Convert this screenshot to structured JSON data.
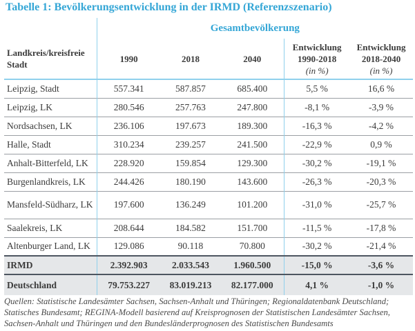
{
  "title": "Tabelle 1: Bevölkerungsentwicklung in der IRMD (Referenzszenario)",
  "colors": {
    "accent": "#34a6d6",
    "summary_bg": "#e5e7e9"
  },
  "table": {
    "group_header": "Gesamtbevölkerung",
    "columns": [
      {
        "label": "Landkreis/kreisfreie Stadt"
      },
      {
        "label": "1990"
      },
      {
        "label": "2018"
      },
      {
        "label": "2040"
      },
      {
        "label": "Entwicklung 1990-2018",
        "unit": "(in %)"
      },
      {
        "label": "Entwicklung 2018-2040",
        "unit": "(in %)"
      }
    ],
    "rows": [
      [
        "Leipzig, Stadt",
        "557.341",
        "587.857",
        "685.400",
        "5,5 %",
        "16,6 %"
      ],
      [
        "Leipzig, LK",
        "280.546",
        "257.763",
        "247.800",
        "-8,1 %",
        "-3,9 %"
      ],
      [
        "Nordsachsen, LK",
        "236.106",
        "197.673",
        "189.300",
        "-16,3 %",
        "-4,2 %"
      ],
      [
        "Halle, Stadt",
        "310.234",
        "239.257",
        "241.500",
        "-22,9 %",
        "0,9 %"
      ],
      [
        "Anhalt-Bitterfeld, LK",
        "228.920",
        "159.854",
        "129.300",
        "-30,2 %",
        "-19,1 %"
      ],
      [
        "Burgenlandkreis, LK",
        "244.426",
        "180.190",
        "143.600",
        "-26,3 %",
        "-20,3 %"
      ],
      [
        "Mansfeld-Südharz, LK",
        "197.600",
        "136.249",
        "101.200",
        "-31,0 %",
        "-25,7 %"
      ],
      [
        "Saalekreis, LK",
        "208.644",
        "184.582",
        "151.700",
        "-11,5 %",
        "-17,8 %"
      ],
      [
        "Altenburger Land, LK",
        "129.086",
        "90.118",
        "70.800",
        "-30,2 %",
        "-21,4 %"
      ]
    ],
    "summary": [
      [
        "IRMD",
        "2.392.903",
        "2.033.543",
        "1.960.500",
        "-15,0 %",
        "-3,6 %"
      ],
      [
        "Deutschland",
        "79.753.227",
        "83.019.213",
        "82.177.000",
        "4,1 %",
        "-1,0 %"
      ]
    ]
  },
  "sources": "Quellen: Statistische Landesämter Sachsen, Sachsen-Anhalt und Thüringen; Regionaldatenbank Deutschland; Statisches Bundesamt; REGINA-Modell basierend auf Kreisprognosen der Statistischen Landesämter Sachsen, Sachsen-Anhalt und Thüringen und den Bundesländerprognosen des Statistischen Bundesamts"
}
